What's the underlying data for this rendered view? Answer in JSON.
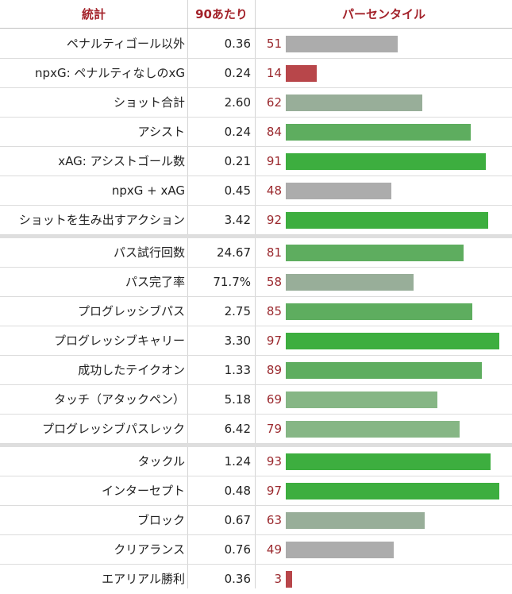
{
  "headers": {
    "stat": "統計",
    "per90": "90あたり",
    "percentile": "パーセンタイル"
  },
  "chart_data": {
    "type": "bar",
    "xlim": [
      0,
      100
    ],
    "groups": [
      [
        {
          "stat": "ペナルティゴール以外",
          "per90": "0.36",
          "percentile": 51
        },
        {
          "stat": "npxG: ペナルティなしのxG",
          "per90": "0.24",
          "percentile": 14
        },
        {
          "stat": "ショット合計",
          "per90": "2.60",
          "percentile": 62
        },
        {
          "stat": "アシスト",
          "per90": "0.24",
          "percentile": 84
        },
        {
          "stat": "xAG: アシストゴール数",
          "per90": "0.21",
          "percentile": 91
        },
        {
          "stat": "npxG + xAG",
          "per90": "0.45",
          "percentile": 48
        },
        {
          "stat": "ショットを生み出すアクション",
          "per90": "3.42",
          "percentile": 92
        }
      ],
      [
        {
          "stat": "パス試行回数",
          "per90": "24.67",
          "percentile": 81
        },
        {
          "stat": "パス完了率",
          "per90": "71.7%",
          "percentile": 58
        },
        {
          "stat": "プログレッシブパス",
          "per90": "2.75",
          "percentile": 85
        },
        {
          "stat": "プログレッシブキャリー",
          "per90": "3.30",
          "percentile": 97
        },
        {
          "stat": "成功したテイクオン",
          "per90": "1.33",
          "percentile": 89
        },
        {
          "stat": "タッチ（アタックペン）",
          "per90": "5.18",
          "percentile": 69
        },
        {
          "stat": "プログレッシブパスレック",
          "per90": "6.42",
          "percentile": 79
        }
      ],
      [
        {
          "stat": "タックル",
          "per90": "1.24",
          "percentile": 93
        },
        {
          "stat": "インターセプト",
          "per90": "0.48",
          "percentile": 97
        },
        {
          "stat": "ブロック",
          "per90": "0.67",
          "percentile": 63
        },
        {
          "stat": "クリアランス",
          "per90": "0.76",
          "percentile": 49
        },
        {
          "stat": "エアリアル勝利",
          "per90": "0.36",
          "percentile": 3
        }
      ]
    ]
  }
}
